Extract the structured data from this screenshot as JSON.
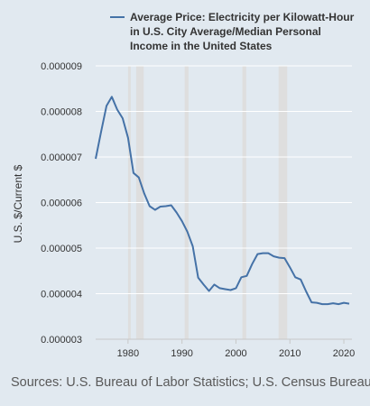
{
  "chart_data": {
    "type": "line",
    "legend": {
      "lines": [
        "Average Price: Electricity per Kilowatt-Hour",
        "in U.S. City Average/Median Personal",
        "Income in the United States"
      ],
      "placement": "top-right"
    },
    "ylabel": "U.S. $/Current $",
    "xlabel": "",
    "ylim": [
      3e-06,
      9e-06
    ],
    "xlim": [
      1974,
      2021.5
    ],
    "y_ticks": [
      "0.000003",
      "0.000004",
      "0.000005",
      "0.000006",
      "0.000007",
      "0.000008",
      "0.000009"
    ],
    "y_tick_values": [
      3e-06,
      4e-06,
      5e-06,
      6e-06,
      7e-06,
      8e-06,
      9e-06
    ],
    "x_ticks": [
      "1980",
      "1990",
      "2000",
      "2010",
      "2020"
    ],
    "x_tick_values": [
      1980,
      1990,
      2000,
      2010,
      2020
    ],
    "grid": true,
    "line_color": "#4572a7",
    "recession_color": "#dedede",
    "recessions": [
      [
        1980.0,
        1980.5
      ],
      [
        1981.5,
        1982.9
      ],
      [
        1990.5,
        1991.2
      ],
      [
        2001.2,
        2001.9
      ],
      [
        2007.9,
        2009.5
      ]
    ],
    "series": [
      {
        "name": "Average Price: Electricity per Kilowatt-Hour in U.S. City Average/Median Personal Income in the United States",
        "x": [
          1974,
          1975,
          1976,
          1977,
          1978,
          1979,
          1980,
          1981,
          1982,
          1983,
          1984,
          1985,
          1986,
          1987,
          1988,
          1989,
          1990,
          1991,
          1992,
          1993,
          1994,
          1995,
          1996,
          1997,
          1998,
          1999,
          2000,
          2001,
          2002,
          2003,
          2004,
          2005,
          2006,
          2007,
          2008,
          2009,
          2010,
          2011,
          2012,
          2013,
          2014,
          2015,
          2016,
          2017,
          2018,
          2019,
          2020,
          2021
        ],
        "y": [
          6.96e-06,
          7.55e-06,
          8.12e-06,
          8.32e-06,
          8.04e-06,
          7.85e-06,
          7.42e-06,
          6.65e-06,
          6.55e-06,
          6.2e-06,
          5.92e-06,
          5.84e-06,
          5.91e-06,
          5.92e-06,
          5.94e-06,
          5.78e-06,
          5.59e-06,
          5.36e-06,
          5.04e-06,
          4.35e-06,
          4.2e-06,
          4.06e-06,
          4.2e-06,
          4.12e-06,
          4.1e-06,
          4.08e-06,
          4.12e-06,
          4.36e-06,
          4.39e-06,
          4.65e-06,
          4.87e-06,
          4.89e-06,
          4.89e-06,
          4.82e-06,
          4.79e-06,
          4.78e-06,
          4.58e-06,
          4.36e-06,
          4.31e-06,
          4.05e-06,
          3.81e-06,
          3.8e-06,
          3.77e-06,
          3.77e-06,
          3.79e-06,
          3.77e-06,
          3.8e-06,
          3.78e-06
        ]
      }
    ]
  },
  "source_text": "Sources: U.S. Bureau of Labor Statistics; U.S. Census Bureau"
}
